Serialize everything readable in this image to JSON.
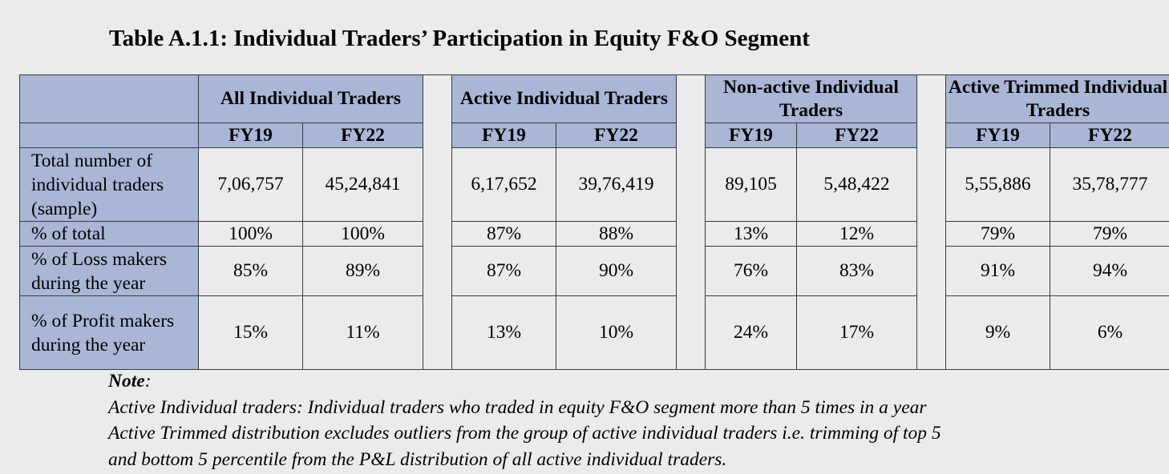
{
  "title": "Table A.1.1: Individual Traders’ Participation in Equity F&O Segment",
  "groups": [
    {
      "label": "All Individual Traders",
      "sub": [
        "FY19",
        "FY22"
      ]
    },
    {
      "label": "Active Individual Traders",
      "sub": [
        "FY19",
        "FY22"
      ]
    },
    {
      "label": "Non-active Individual Traders",
      "sub": [
        "FY19",
        "FY22"
      ]
    },
    {
      "label": "Active Trimmed Individual Traders",
      "sub": [
        "FY19",
        "FY22"
      ]
    }
  ],
  "rows": [
    {
      "label": "Total number of individual traders (sample)",
      "values": [
        "7,06,757",
        "45,24,841",
        "6,17,652",
        "39,76,419",
        "89,105",
        "5,48,422",
        "5,55,886",
        "35,78,777"
      ]
    },
    {
      "label": "% of total",
      "values": [
        "100%",
        "100%",
        "87%",
        "88%",
        "13%",
        "12%",
        "79%",
        "79%"
      ]
    },
    {
      "label": "% of Loss makers during the year",
      "values": [
        "85%",
        "89%",
        "87%",
        "90%",
        "76%",
        "83%",
        "91%",
        "94%"
      ]
    },
    {
      "label": "% of Profit makers during the year",
      "values": [
        "15%",
        "11%",
        "13%",
        "10%",
        "24%",
        "17%",
        "9%",
        "6%"
      ]
    }
  ],
  "note": {
    "heading": "Note",
    "lines": [
      "Active Individual traders: Individual traders who traded in equity F&O segment more than 5 times in a year",
      "Active Trimmed distribution excludes outliers from the group of active individual traders i.e. trimming of top 5",
      "and bottom 5 percentile from the P&L distribution of all active individual traders."
    ]
  }
}
